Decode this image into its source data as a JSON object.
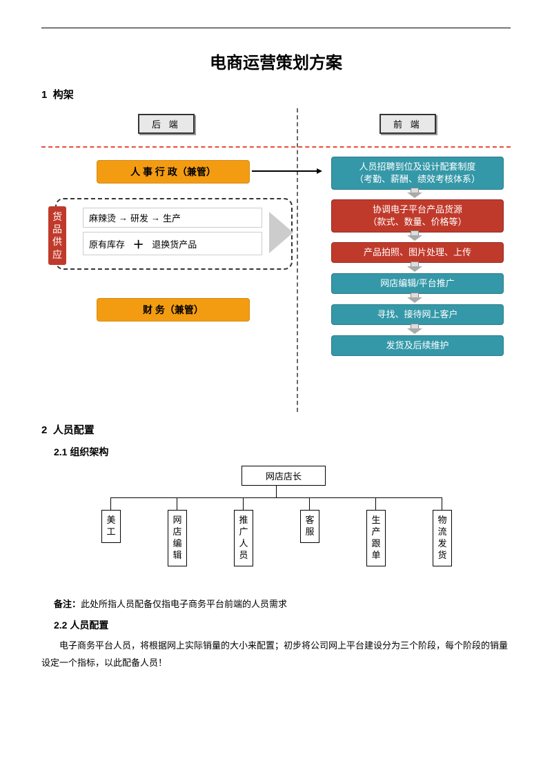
{
  "title": "电商运营策划方案",
  "section1": {
    "num": "1",
    "title": "构架"
  },
  "flow": {
    "back_label": "后 端",
    "front_label": "前  端",
    "hr_box": "人 事 行 政（兼管）",
    "finance_box": "财 务（兼管）",
    "supply_label": "货品供应",
    "row1": {
      "a": "麻辣烫",
      "b": "研发",
      "c": "生产"
    },
    "row2": {
      "a": "原有库存",
      "b": "退换货产品"
    },
    "front_boxes": [
      "人员招聘到位及设计配套制度\n（考勤、薪酬、绩效考核体系）",
      "协调电子平台产品货源\n（款式、数量、价格等）",
      "产品拍照、图片处理、上传",
      "网店编辑/平台推广",
      "寻找、接待网上客户",
      "发货及后续维护"
    ],
    "colors": {
      "orange": "#f39c12",
      "teal": "#3498a8",
      "red": "#c03a2b",
      "dash": "#e74c3c"
    }
  },
  "section2": {
    "num": "2",
    "title": "人员配置"
  },
  "section2_1": {
    "num": "2.1",
    "title": "组织架构"
  },
  "org": {
    "root": "网店店长",
    "children": [
      "美工",
      "网店编辑",
      "推广人员",
      "客服",
      "生产跟单",
      "物流发货"
    ]
  },
  "note": {
    "label": "备注：",
    "text": "此处所指人员配备仅指电子商务平台前端的人员需求"
  },
  "section2_2": {
    "num": "2.2",
    "title": "人员配置"
  },
  "body": "电子商务平台人员，将根据网上实际销量的大小来配置；初步将公司网上平台建设分为三个阶段，每个阶段的销量设定一个指标，以此配备人员！"
}
